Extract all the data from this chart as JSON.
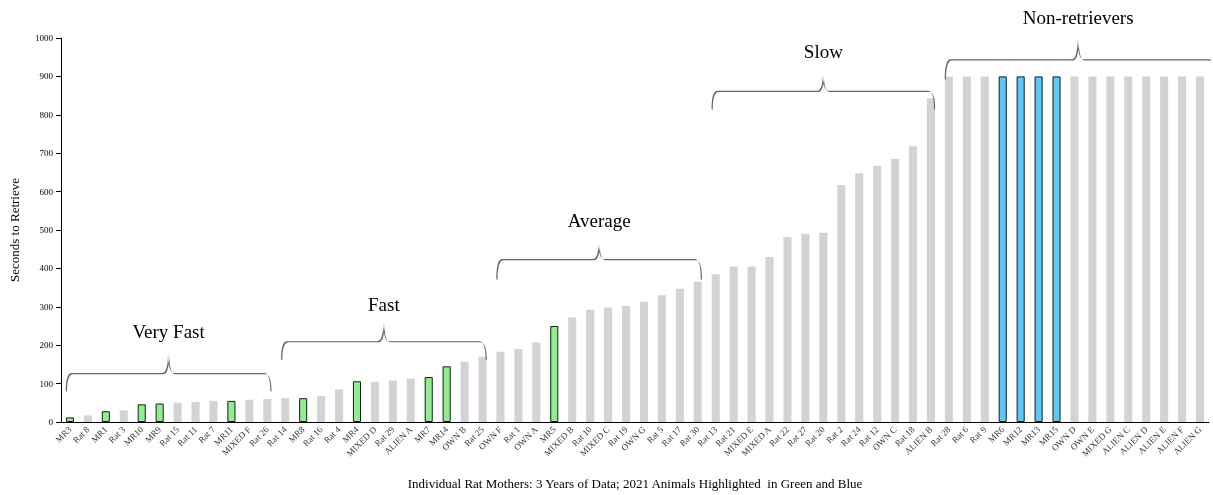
{
  "chart_data": {
    "type": "bar",
    "xlabel": "Individual Rat Mothers: 3 Years of Data; 2021 Animals Highlighted  in Green and Blue",
    "ylabel": "Seconds to Retrieve",
    "categories": [
      "MR3",
      "Rat 8",
      "MR1",
      "Rat 3",
      "MR10",
      "MR9",
      "Rat 15",
      "Rat 11",
      "Rat 7",
      "MR11",
      "MIXED F",
      "Rat 26",
      "Rat 14",
      "MR8",
      "Rat 16",
      "Rat 4",
      "MR4",
      "MIXED D",
      "Rat 29",
      "ALIEN A",
      "MR7",
      "MR14",
      "OWN B",
      "Rat 25",
      "OWN F",
      "Rat 1",
      "OWN A",
      "MR5",
      "MIXED B",
      "Rat 10",
      "MIXED C",
      "Rat 19",
      "OWN G",
      "Rat 5",
      "Rat 17",
      "Rat 30",
      "Rat 13",
      "Rat 21",
      "MIXED E",
      "MIXED A",
      "Rat 22",
      "Rat 27",
      "Rat 20",
      "Rat 2",
      "Rat 24",
      "Rat 12",
      "OWN C",
      "Rat 18",
      "ALIEN B",
      "Rat 28",
      "Rat 6",
      "Rat 9",
      "MR6",
      "MR12",
      "MR13",
      "MR15",
      "OWN D",
      "OWN E",
      "MIXED G",
      "ALIEN C",
      "ALIEN D",
      "ALIEN E",
      "ALIEN F",
      "ALIEN G"
    ],
    "values": [
      12,
      17,
      28,
      30,
      46,
      48,
      50,
      52,
      55,
      55,
      58,
      60,
      62,
      62,
      68,
      85,
      106,
      105,
      108,
      113,
      117,
      145,
      157,
      170,
      183,
      190,
      207,
      250,
      272,
      292,
      298,
      302,
      313,
      330,
      347,
      365,
      385,
      405,
      405,
      430,
      482,
      490,
      493,
      617,
      648,
      667,
      685,
      718,
      843,
      900,
      900,
      900,
      900,
      900,
      900,
      900,
      900,
      900,
      900,
      900,
      900,
      900,
      900,
      900
    ],
    "colors": [
      "#90ee90",
      "#d3d3d3",
      "#90ee90",
      "#d3d3d3",
      "#90ee90",
      "#90ee90",
      "#d3d3d3",
      "#d3d3d3",
      "#d3d3d3",
      "#90ee90",
      "#d3d3d3",
      "#d3d3d3",
      "#d3d3d3",
      "#90ee90",
      "#d3d3d3",
      "#d3d3d3",
      "#90ee90",
      "#d3d3d3",
      "#d3d3d3",
      "#d3d3d3",
      "#90ee90",
      "#90ee90",
      "#d3d3d3",
      "#d3d3d3",
      "#d3d3d3",
      "#d3d3d3",
      "#d3d3d3",
      "#90ee90",
      "#d3d3d3",
      "#d3d3d3",
      "#d3d3d3",
      "#d3d3d3",
      "#d3d3d3",
      "#d3d3d3",
      "#d3d3d3",
      "#d3d3d3",
      "#d3d3d3",
      "#d3d3d3",
      "#d3d3d3",
      "#d3d3d3",
      "#d3d3d3",
      "#d3d3d3",
      "#d3d3d3",
      "#d3d3d3",
      "#d3d3d3",
      "#d3d3d3",
      "#d3d3d3",
      "#d3d3d3",
      "#d3d3d3",
      "#d3d3d3",
      "#d3d3d3",
      "#d3d3d3",
      "#5bc8f5",
      "#5bc8f5",
      "#5bc8f5",
      "#5bc8f5",
      "#d3d3d3",
      "#d3d3d3",
      "#d3d3d3",
      "#d3d3d3",
      "#d3d3d3",
      "#d3d3d3",
      "#d3d3d3",
      "#d3d3d3"
    ],
    "ylim": [
      0,
      1000
    ],
    "yticks": [
      0,
      100,
      200,
      300,
      400,
      500,
      600,
      700,
      800,
      900,
      {
        "value": 1000,
        "label": "1000"
      }
    ],
    "grid": false,
    "annotations": [
      "Very Fast",
      "Fast",
      "Average",
      "Slow",
      "Non-retrievers"
    ]
  }
}
